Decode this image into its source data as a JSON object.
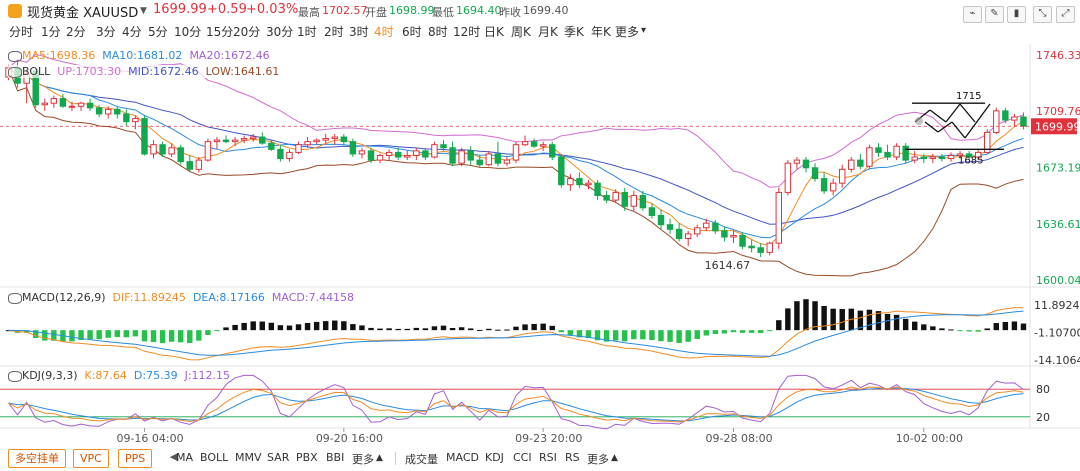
{
  "header": {
    "name": "现货黄金 XAUUSD",
    "price": "1699.99",
    "change": "+0.59",
    "change_pct": "+0.03%",
    "high_label": "最高",
    "high": "1702.57",
    "open_label": "开盘",
    "open": "1698.99",
    "low_label": "最低",
    "low": "1694.40",
    "prev_label": "昨收",
    "prev": "1699.40",
    "up_color": "#e0323b",
    "down_color": "#11a84e"
  },
  "toolbar": {
    "icons": [
      "line-draw-icon",
      "pen-icon",
      "candle-icon",
      "collapse-icon",
      "expand-icon"
    ]
  },
  "periods": {
    "items": [
      "分时",
      "1分",
      "2分",
      "3分",
      "4分",
      "5分",
      "10分",
      "15分",
      "20分",
      "30分",
      "1时",
      "2时",
      "3时",
      "4时",
      "6时",
      "8时",
      "12时",
      "日K",
      "周K",
      "月K",
      "季K",
      "年K",
      "更多"
    ],
    "active": "4时"
  },
  "main_legend": {
    "ma5": "MA5:1698.36",
    "ma10": "MA10:1681.02",
    "ma20": "MA20:1672.46",
    "boll_name": "BOLL",
    "up": "UP:1703.30",
    "mid": "MID:1672.46",
    "low": "LOW:1641.61"
  },
  "macd_legend": {
    "name": "MACD(12,26,9)",
    "dif": "DIF:11.89245",
    "dea": "DEA:8.17166",
    "macd": "MACD:7.44158"
  },
  "kdj_legend": {
    "name": "KDJ(9,3,3)",
    "k": "K:87.64",
    "d": "D:75.39",
    "j": "J:112.15"
  },
  "annotations": {
    "low_marker": "1614.67",
    "target_up": "1715",
    "target_down": "1685"
  },
  "bottom_bar": {
    "chips": [
      "多空挂单",
      "VPC",
      "PPS"
    ],
    "main_tabs": [
      "MA",
      "BOLL",
      "MMV",
      "SAR",
      "PBX",
      "BBI",
      "更多"
    ],
    "sub_tabs": [
      "成交量",
      "MACD",
      "KDJ",
      "CCI",
      "RSI",
      "RS",
      "更多"
    ]
  },
  "chart_data": {
    "type": "candlestick",
    "title": "现货黄金 XAUUSD 4时",
    "x_tick_labels": [
      "09-16 04:00",
      "09-20 16:00",
      "09-23 20:00",
      "09-28 08:00",
      "10-02 00:00"
    ],
    "price_axis": {
      "ticks": [
        "1746.33",
        "1709.76",
        "1673.19",
        "1636.61",
        "1600.04"
      ],
      "ylim": [
        1600.04,
        1746.33
      ],
      "last_price": "1699.99",
      "last_price_value": 1699.99
    },
    "candles": [
      [
        1732,
        1740,
        1730,
        1738
      ],
      [
        1738,
        1743,
        1725,
        1728
      ],
      [
        1728,
        1737,
        1715,
        1734
      ],
      [
        1736,
        1737,
        1712,
        1714
      ],
      [
        1714,
        1718,
        1710,
        1715
      ],
      [
        1715,
        1720,
        1712,
        1718
      ],
      [
        1718,
        1721,
        1712,
        1713
      ],
      [
        1713,
        1716,
        1710,
        1713
      ],
      [
        1713,
        1716,
        1710,
        1715
      ],
      [
        1715,
        1718,
        1710,
        1712
      ],
      [
        1712,
        1714,
        1706,
        1708
      ],
      [
        1708,
        1713,
        1705,
        1711
      ],
      [
        1711,
        1713,
        1705,
        1708
      ],
      [
        1708,
        1711,
        1700,
        1703
      ],
      [
        1703,
        1707,
        1698,
        1705
      ],
      [
        1705,
        1707,
        1681,
        1682
      ],
      [
        1682,
        1691,
        1679,
        1688
      ],
      [
        1688,
        1690,
        1680,
        1682
      ],
      [
        1682,
        1689,
        1680,
        1686
      ],
      [
        1686,
        1688,
        1675,
        1677
      ],
      [
        1677,
        1681,
        1670,
        1672
      ],
      [
        1672,
        1680,
        1670,
        1678
      ],
      [
        1678,
        1692,
        1677,
        1690
      ],
      [
        1690,
        1693,
        1685,
        1691
      ],
      [
        1691,
        1694,
        1689,
        1690
      ],
      [
        1690,
        1693,
        1687,
        1691
      ],
      [
        1691,
        1694,
        1689,
        1692
      ],
      [
        1692,
        1695,
        1690,
        1693
      ],
      [
        1693,
        1696,
        1688,
        1689
      ],
      [
        1689,
        1691,
        1684,
        1685
      ],
      [
        1685,
        1688,
        1677,
        1679
      ],
      [
        1679,
        1685,
        1677,
        1683
      ],
      [
        1683,
        1690,
        1682,
        1688
      ],
      [
        1688,
        1693,
        1686,
        1690
      ],
      [
        1690,
        1692,
        1688,
        1691
      ],
      [
        1691,
        1695,
        1689,
        1692
      ],
      [
        1692,
        1695,
        1688,
        1693
      ],
      [
        1693,
        1695,
        1688,
        1690
      ],
      [
        1690,
        1692,
        1680,
        1682
      ],
      [
        1682,
        1686,
        1679,
        1684
      ],
      [
        1684,
        1686,
        1676,
        1678
      ],
      [
        1678,
        1682,
        1676,
        1681
      ],
      [
        1681,
        1685,
        1678,
        1683
      ],
      [
        1683,
        1686,
        1678,
        1680
      ],
      [
        1680,
        1684,
        1678,
        1681
      ],
      [
        1681,
        1686,
        1678,
        1684
      ],
      [
        1684,
        1686,
        1678,
        1680
      ],
      [
        1680,
        1690,
        1679,
        1688
      ],
      [
        1688,
        1691,
        1684,
        1686
      ],
      [
        1686,
        1690,
        1674,
        1676
      ],
      [
        1676,
        1686,
        1674,
        1684
      ],
      [
        1684,
        1687,
        1675,
        1678
      ],
      [
        1678,
        1681,
        1673,
        1675
      ],
      [
        1675,
        1684,
        1674,
        1682
      ],
      [
        1682,
        1690,
        1674,
        1676
      ],
      [
        1676,
        1680,
        1674,
        1678
      ],
      [
        1678,
        1690,
        1676,
        1688
      ],
      [
        1688,
        1694,
        1687,
        1690
      ],
      [
        1690,
        1692,
        1686,
        1687
      ],
      [
        1687,
        1690,
        1684,
        1688
      ],
      [
        1688,
        1690,
        1678,
        1680
      ],
      [
        1680,
        1682,
        1660,
        1662
      ],
      [
        1662,
        1669,
        1658,
        1666
      ],
      [
        1666,
        1670,
        1660,
        1662
      ],
      [
        1662,
        1665,
        1659,
        1663
      ],
      [
        1663,
        1665,
        1652,
        1655
      ],
      [
        1655,
        1658,
        1650,
        1652
      ],
      [
        1652,
        1659,
        1650,
        1657
      ],
      [
        1657,
        1660,
        1645,
        1648
      ],
      [
        1648,
        1658,
        1645,
        1655
      ],
      [
        1655,
        1658,
        1645,
        1647
      ],
      [
        1647,
        1650,
        1640,
        1642
      ],
      [
        1642,
        1646,
        1633,
        1636
      ],
      [
        1636,
        1640,
        1630,
        1633
      ],
      [
        1633,
        1637,
        1625,
        1627
      ],
      [
        1627,
        1632,
        1622,
        1630
      ],
      [
        1630,
        1636,
        1628,
        1634
      ],
      [
        1634,
        1640,
        1632,
        1637
      ],
      [
        1637,
        1639,
        1630,
        1632
      ],
      [
        1632,
        1635,
        1625,
        1628
      ],
      [
        1628,
        1632,
        1624,
        1629
      ],
      [
        1629,
        1631,
        1620,
        1622
      ],
      [
        1622,
        1626,
        1618,
        1621
      ],
      [
        1621,
        1624,
        1615,
        1618
      ],
      [
        1618,
        1625,
        1616,
        1624
      ],
      [
        1624,
        1660,
        1620,
        1657
      ],
      [
        1657,
        1678,
        1655,
        1676
      ],
      [
        1676,
        1680,
        1672,
        1678
      ],
      [
        1678,
        1680,
        1670,
        1673
      ],
      [
        1673,
        1676,
        1664,
        1666
      ],
      [
        1666,
        1670,
        1656,
        1658
      ],
      [
        1658,
        1666,
        1655,
        1663
      ],
      [
        1663,
        1675,
        1660,
        1672
      ],
      [
        1672,
        1680,
        1670,
        1678
      ],
      [
        1678,
        1682,
        1672,
        1674
      ],
      [
        1674,
        1688,
        1672,
        1686
      ],
      [
        1686,
        1689,
        1680,
        1683
      ],
      [
        1683,
        1688,
        1678,
        1680
      ],
      [
        1680,
        1689,
        1678,
        1687
      ],
      [
        1687,
        1689,
        1676,
        1678
      ],
      [
        1678,
        1684,
        1676,
        1680
      ],
      [
        1680,
        1682,
        1676,
        1679
      ],
      [
        1679,
        1682,
        1676,
        1680
      ],
      [
        1680,
        1682,
        1677,
        1679
      ],
      [
        1679,
        1683,
        1677,
        1681
      ],
      [
        1681,
        1684,
        1679,
        1682
      ],
      [
        1682,
        1684,
        1678,
        1680
      ],
      [
        1680,
        1685,
        1678,
        1683
      ],
      [
        1683,
        1698,
        1682,
        1696
      ],
      [
        1696,
        1712,
        1695,
        1710
      ],
      [
        1710,
        1712,
        1702,
        1704
      ],
      [
        1704,
        1708,
        1700,
        1706
      ],
      [
        1706,
        1709,
        1698,
        1700
      ]
    ],
    "series": [
      {
        "name": "MA5",
        "color": "#f08c22"
      },
      {
        "name": "MA10",
        "color": "#2a8be0"
      },
      {
        "name": "MA20",
        "color": "#a25ed1"
      },
      {
        "name": "BOLL UP",
        "color": "#d36bd1"
      },
      {
        "name": "BOLL MID",
        "color": "#4154c7"
      },
      {
        "name": "BOLL LOW",
        "color": "#9a4a26"
      }
    ],
    "macd": {
      "ticks": [
        "11.89245",
        "-1.10700",
        "-14.10645"
      ],
      "ylim": [
        -14.10645,
        11.89245
      ]
    },
    "kdj": {
      "ticks": [
        "80",
        "20"
      ],
      "ylim": [
        0,
        100
      ]
    }
  }
}
